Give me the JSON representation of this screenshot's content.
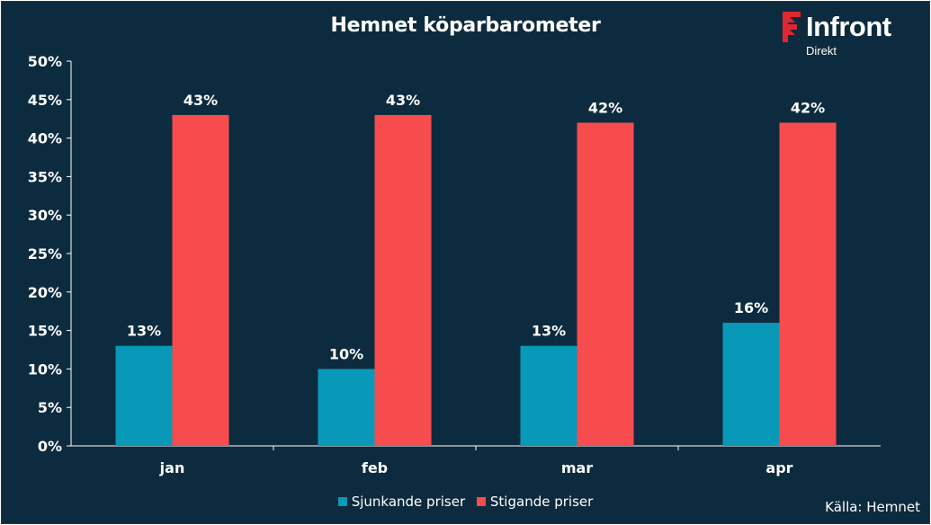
{
  "title": "Hemnet köparbarometer",
  "logo": {
    "brand": "Infront",
    "sub": "Direkt",
    "color": "#e0262f"
  },
  "source": "Källa:  Hemnet",
  "colors": {
    "background": "#0d2b3e",
    "series_1": "#0899b8",
    "series_2": "#f74c4e",
    "axis": "#ffffff",
    "text": "#ffffff"
  },
  "chart_data": {
    "type": "bar",
    "title": "Hemnet köparbarometer",
    "categories": [
      "jan",
      "feb",
      "mar",
      "apr"
    ],
    "series": [
      {
        "name": "Sjunkande priser",
        "values": [
          13,
          10,
          13,
          16
        ],
        "labels": [
          "13%",
          "10%",
          "13%",
          "16%"
        ]
      },
      {
        "name": "Stigande priser",
        "values": [
          43,
          43,
          42,
          42
        ],
        "labels": [
          "43%",
          "43%",
          "42%",
          "42%"
        ]
      }
    ],
    "ylim": [
      0,
      50
    ],
    "yticks": [
      "0%",
      "5%",
      "10%",
      "15%",
      "20%",
      "25%",
      "30%",
      "35%",
      "40%",
      "45%",
      "50%"
    ],
    "grid": false,
    "legend": "bottom"
  }
}
